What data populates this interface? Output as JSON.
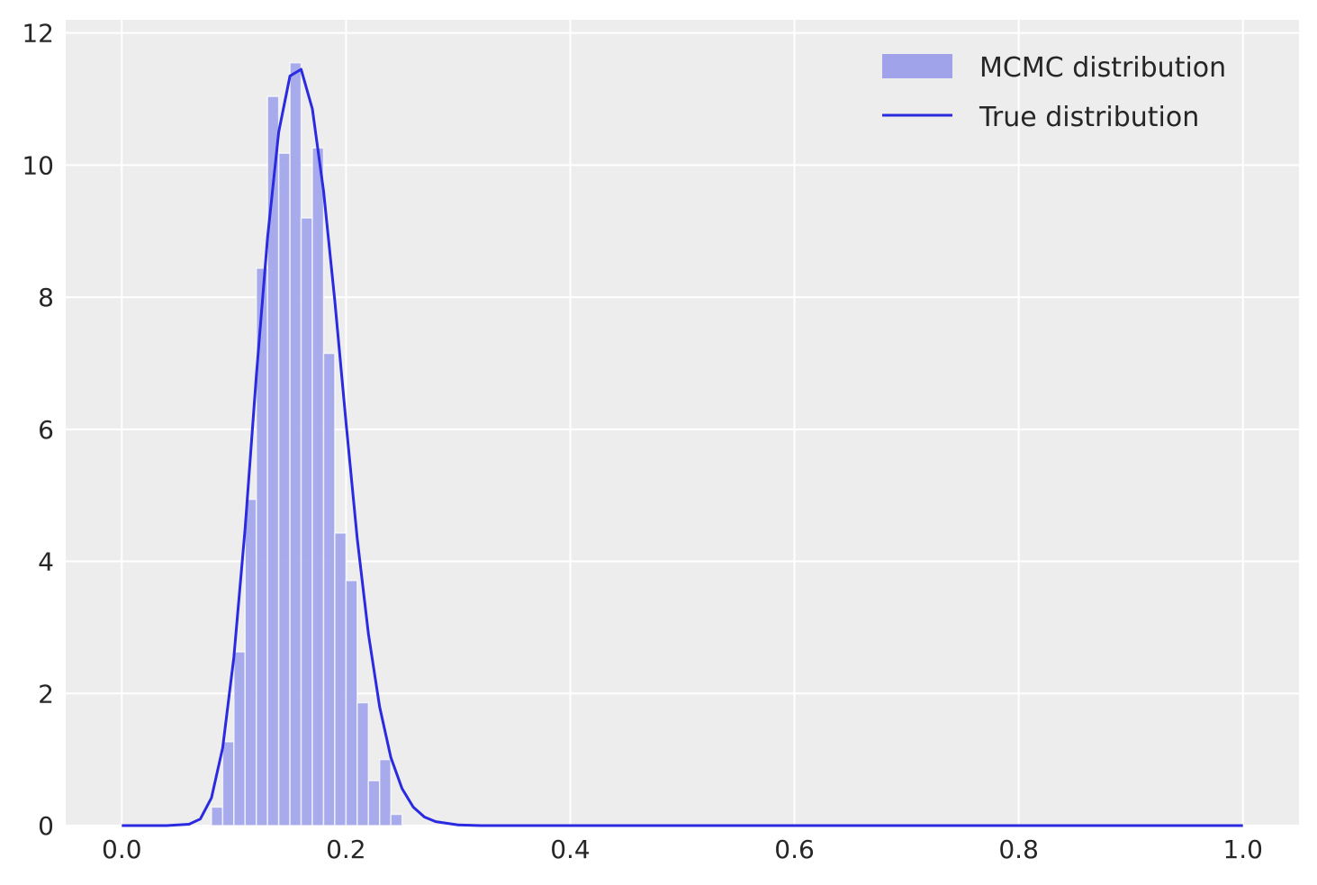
{
  "chart_data": {
    "type": "bar",
    "title": "",
    "xlabel": "",
    "ylabel": "",
    "xlim": [
      -0.05,
      1.05
    ],
    "ylim": [
      0,
      12.2
    ],
    "xticks": [
      0.0,
      0.2,
      0.4,
      0.6,
      0.8,
      1.0
    ],
    "xtick_labels": [
      "0.0",
      "0.2",
      "0.4",
      "0.6",
      "0.8",
      "1.0"
    ],
    "yticks": [
      0,
      2,
      4,
      6,
      8,
      10,
      12
    ],
    "ytick_labels": [
      "0",
      "2",
      "4",
      "6",
      "8",
      "10",
      "12"
    ],
    "grid": true,
    "legend_position": "upper-right",
    "colors": {
      "background": "#eaeaf2",
      "plot_background": "#ededed",
      "grid": "#ffffff",
      "histogram": "#a0a3ea",
      "line": "#2a2ae0",
      "text": "#262626"
    },
    "series": [
      {
        "name": "MCMC distribution",
        "kind": "histogram",
        "bin_width": 0.01,
        "bin_starts": [
          0.08,
          0.09,
          0.1,
          0.11,
          0.12,
          0.13,
          0.14,
          0.15,
          0.16,
          0.17,
          0.18,
          0.19,
          0.2,
          0.21,
          0.22,
          0.23,
          0.24,
          0.25
        ],
        "values": [
          0.28,
          1.27,
          2.63,
          4.94,
          8.44,
          11.04,
          10.18,
          11.55,
          9.2,
          10.26,
          7.15,
          4.43,
          3.71,
          1.86,
          0.68,
          1.0,
          0.17,
          0.0
        ]
      },
      {
        "name": "True distribution",
        "kind": "line",
        "x": [
          0.0,
          0.04,
          0.06,
          0.07,
          0.08,
          0.09,
          0.1,
          0.11,
          0.12,
          0.13,
          0.14,
          0.15,
          0.16,
          0.17,
          0.18,
          0.19,
          0.2,
          0.21,
          0.22,
          0.23,
          0.24,
          0.25,
          0.26,
          0.27,
          0.28,
          0.3,
          0.32,
          0.35,
          0.4,
          0.5,
          1.0
        ],
        "y": [
          0.0,
          0.0,
          0.02,
          0.1,
          0.42,
          1.18,
          2.55,
          4.5,
          6.8,
          8.9,
          10.5,
          11.35,
          11.45,
          10.85,
          9.6,
          7.95,
          6.1,
          4.35,
          2.9,
          1.8,
          1.03,
          0.56,
          0.28,
          0.13,
          0.06,
          0.01,
          0.0,
          0.0,
          0.0,
          0.0,
          0.0
        ]
      }
    ]
  }
}
